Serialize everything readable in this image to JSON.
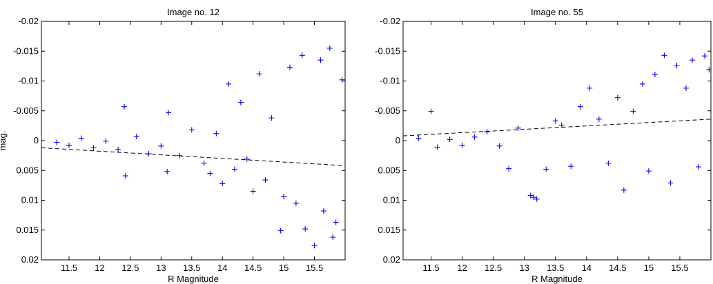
{
  "chart_data": [
    {
      "type": "scatter",
      "title": "Image no. 12",
      "xlabel": "R Magnitude",
      "ylabel": "mag.",
      "xlim": [
        11.05,
        16.0
      ],
      "ylim": [
        -0.02,
        0.02
      ],
      "y_reversed": true,
      "x_ticks": [
        "11.5",
        "12",
        "12.5",
        "13",
        "13.5",
        "14",
        "14.5",
        "15",
        "15.5"
      ],
      "y_ticks": [
        "-0.02",
        "-0.015",
        "-0.01",
        "-0.005",
        "0",
        "0.005",
        "0.01",
        "0.015",
        "0.02"
      ],
      "grid": false,
      "marker_color": "#0000ff",
      "trend_color": "#000000",
      "series": [
        {
          "values": [
            [
              11.3,
              0.0003
            ],
            [
              11.5,
              0.0008
            ],
            [
              11.7,
              -0.0004
            ],
            [
              11.9,
              0.0012
            ],
            [
              12.1,
              0.0001
            ],
            [
              12.3,
              0.0015
            ],
            [
              12.4,
              -0.0057
            ],
            [
              12.42,
              0.0059
            ],
            [
              12.6,
              -0.0007
            ],
            [
              12.8,
              0.0022
            ],
            [
              13.0,
              0.0009
            ],
            [
              13.1,
              0.0052
            ],
            [
              13.12,
              -0.0047
            ],
            [
              13.3,
              0.0025
            ],
            [
              13.5,
              -0.0018
            ],
            [
              13.7,
              0.0038
            ],
            [
              13.8,
              0.0055
            ],
            [
              13.9,
              -0.0012
            ],
            [
              14.0,
              0.0072
            ],
            [
              14.1,
              -0.0095
            ],
            [
              14.2,
              0.0048
            ],
            [
              14.3,
              -0.0064
            ],
            [
              14.4,
              0.0031
            ],
            [
              14.5,
              0.0085
            ],
            [
              14.6,
              -0.0112
            ],
            [
              14.7,
              0.0066
            ],
            [
              14.8,
              -0.0038
            ],
            [
              14.95,
              0.0151
            ],
            [
              15.0,
              0.0094
            ],
            [
              15.1,
              -0.0123
            ],
            [
              15.2,
              0.0105
            ],
            [
              15.3,
              -0.0143
            ],
            [
              15.35,
              0.0148
            ],
            [
              15.5,
              0.0176
            ],
            [
              15.6,
              -0.0135
            ],
            [
              15.65,
              0.0118
            ],
            [
              15.75,
              -0.0155
            ],
            [
              15.8,
              0.0162
            ],
            [
              15.85,
              0.0137
            ],
            [
              15.95,
              -0.0102
            ]
          ]
        }
      ],
      "trend": {
        "x": [
          11.05,
          16.0
        ],
        "y": [
          0.0012,
          0.0042
        ]
      }
    },
    {
      "type": "scatter",
      "title": "Image no. 55",
      "xlabel": "R Magnitude",
      "ylabel": "",
      "xlim": [
        11.05,
        16.0
      ],
      "ylim": [
        -0.02,
        0.02
      ],
      "y_reversed": true,
      "x_ticks": [
        "11.5",
        "12",
        "12.5",
        "13",
        "13.5",
        "14",
        "14.5",
        "15",
        "15.5"
      ],
      "y_ticks": [
        "-0.02",
        "-0.015",
        "-0.01",
        "-0.005",
        "0",
        "0.005",
        "0.01",
        "0.015",
        "0.02"
      ],
      "grid": false,
      "marker_color": "#0000ff",
      "trend_color": "#000000",
      "series": [
        {
          "values": [
            [
              11.3,
              -0.0004
            ],
            [
              11.5,
              -0.0049
            ],
            [
              11.6,
              0.0011
            ],
            [
              11.8,
              -0.0002
            ],
            [
              12.0,
              0.0008
            ],
            [
              12.2,
              -0.0006
            ],
            [
              12.4,
              -0.0015
            ],
            [
              12.6,
              0.0009
            ],
            [
              12.75,
              0.0047
            ],
            [
              12.9,
              -0.0021
            ],
            [
              13.1,
              0.0092
            ],
            [
              13.15,
              0.0095
            ],
            [
              13.2,
              0.0098
            ],
            [
              13.35,
              0.0048
            ],
            [
              13.5,
              -0.0033
            ],
            [
              13.6,
              -0.0026
            ],
            [
              13.75,
              0.0043
            ],
            [
              13.9,
              -0.0057
            ],
            [
              14.05,
              -0.0088
            ],
            [
              14.2,
              -0.0036
            ],
            [
              14.35,
              0.0038
            ],
            [
              14.5,
              -0.0072
            ],
            [
              14.6,
              0.0083
            ],
            [
              14.75,
              -0.0049
            ],
            [
              14.9,
              -0.0095
            ],
            [
              15.0,
              0.0051
            ],
            [
              15.1,
              -0.0111
            ],
            [
              15.25,
              -0.0143
            ],
            [
              15.35,
              0.0071
            ],
            [
              15.45,
              -0.0126
            ],
            [
              15.6,
              -0.0088
            ],
            [
              15.7,
              -0.0135
            ],
            [
              15.8,
              0.0044
            ],
            [
              15.9,
              -0.0142
            ],
            [
              15.97,
              -0.0119
            ]
          ]
        }
      ],
      "trend": {
        "x": [
          11.05,
          16.0
        ],
        "y": [
          -0.0008,
          -0.0036
        ]
      }
    }
  ]
}
